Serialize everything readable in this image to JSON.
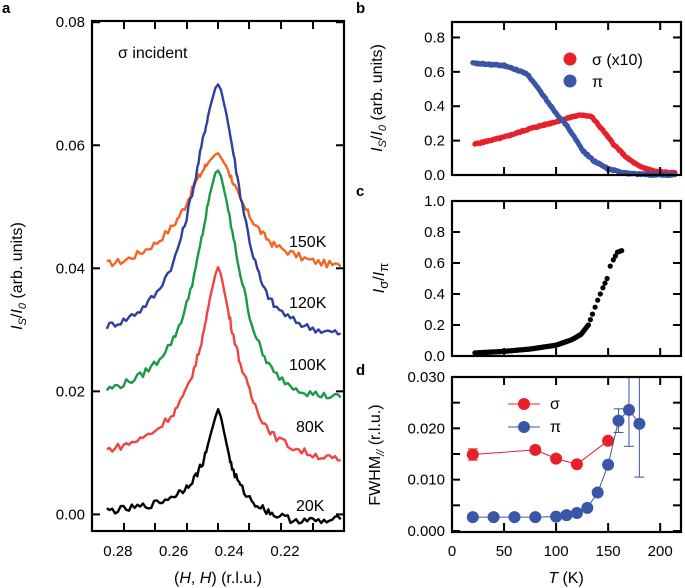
{
  "figure": {
    "panels": [
      "a",
      "b",
      "c",
      "d"
    ]
  },
  "chart_data": [
    {
      "panel": "a",
      "type": "line",
      "annotation": "σ incident",
      "xlabel": "(H, H) (r.l.u.)",
      "ylabel": "I_S/I_0 (arb. units)",
      "xlim": [
        0.2893,
        0.1988
      ],
      "ylim": [
        -0.0027,
        0.0802
      ],
      "x_tick_labels": [
        "0.28",
        "0.26",
        "0.24",
        "0.22"
      ],
      "x_tick_values": [
        0.28,
        0.26,
        0.24,
        0.22
      ],
      "y_tick_labels": [
        "0.00",
        "0.02",
        "0.04",
        "0.06",
        "0.08"
      ],
      "y_tick_values": [
        0.0,
        0.02,
        0.04,
        0.06,
        0.08
      ],
      "x": [
        0.284,
        0.278,
        0.272,
        0.266,
        0.26,
        0.256,
        0.252,
        0.249,
        0.247,
        0.245,
        0.244,
        0.243,
        0.241,
        0.239,
        0.236,
        0.232,
        0.228,
        0.224,
        0.218,
        0.212,
        0.206,
        0.2
      ],
      "series": [
        {
          "name": "150K",
          "color": "#f26522",
          "values": [
            0.0407,
            0.0412,
            0.0425,
            0.0442,
            0.047,
            0.05,
            0.054,
            0.0563,
            0.0575,
            0.0585,
            0.0587,
            0.058,
            0.0565,
            0.0545,
            0.051,
            0.048,
            0.0455,
            0.0438,
            0.0425,
            0.0414,
            0.0408,
            0.0403
          ]
        },
        {
          "name": "120K",
          "color": "#2e3f9e",
          "values": [
            0.0306,
            0.0315,
            0.0332,
            0.036,
            0.041,
            0.047,
            0.055,
            0.062,
            0.066,
            0.0693,
            0.0699,
            0.069,
            0.065,
            0.06,
            0.052,
            0.043,
            0.037,
            0.034,
            0.0318,
            0.0305,
            0.0298,
            0.0294
          ]
        },
        {
          "name": "100K",
          "color": "#1a9a48",
          "values": [
            0.0203,
            0.0212,
            0.0225,
            0.0248,
            0.0285,
            0.033,
            0.04,
            0.047,
            0.052,
            0.0555,
            0.0559,
            0.055,
            0.051,
            0.046,
            0.039,
            0.031,
            0.026,
            0.023,
            0.021,
            0.0198,
            0.0193,
            0.019
          ]
        },
        {
          "name": "80K",
          "color": "#ef4444",
          "values": [
            0.0105,
            0.0112,
            0.0122,
            0.0138,
            0.0165,
            0.0195,
            0.0245,
            0.03,
            0.035,
            0.039,
            0.0402,
            0.039,
            0.0345,
            0.03,
            0.0245,
            0.019,
            0.0152,
            0.0128,
            0.011,
            0.01,
            0.0093,
            0.0088
          ]
        },
        {
          "name": "20K",
          "color": "#000000",
          "values": [
            0.0006,
            0.0008,
            0.0012,
            0.0018,
            0.003,
            0.0042,
            0.0062,
            0.009,
            0.0125,
            0.0158,
            0.0171,
            0.0158,
            0.0115,
            0.0075,
            0.0045,
            0.0022,
            0.001,
            0.0,
            -0.0008,
            -0.001,
            -0.0012,
            -0.0008
          ]
        }
      ]
    },
    {
      "panel": "b",
      "type": "scatter",
      "ylabel": "I_S/I_0 (arb. units)",
      "xlim": [
        0,
        220
      ],
      "ylim": [
        0,
        0.89
      ],
      "y_tick_labels": [
        "0.0",
        "0.2",
        "0.4",
        "0.6",
        "0.8"
      ],
      "y_tick_values": [
        0.0,
        0.2,
        0.4,
        0.6,
        0.8
      ],
      "x_tick_values": [
        50,
        100,
        150,
        200
      ],
      "legend": "top-right",
      "series": [
        {
          "name": "σ (x10)",
          "color": "#e8202a",
          "x": [
            22,
            50,
            75,
            100,
            116,
            126,
            134,
            145,
            155,
            168,
            180,
            196,
            215
          ],
          "values": [
            0.18,
            0.22,
            0.27,
            0.31,
            0.34,
            0.35,
            0.34,
            0.26,
            0.18,
            0.1,
            0.05,
            0.02,
            0.01
          ]
        },
        {
          "name": "π",
          "color": "#3b55a8",
          "x": [
            20,
            50,
            72,
            88,
            100,
            110,
            126,
            136,
            150,
            168,
            190,
            215
          ],
          "values": [
            0.65,
            0.637,
            0.59,
            0.46,
            0.36,
            0.29,
            0.14,
            0.083,
            0.035,
            0.01,
            0.002,
            0.0
          ]
        }
      ]
    },
    {
      "panel": "c",
      "type": "scatter",
      "ylabel": "I_σ/I_π",
      "xlim": [
        0,
        220
      ],
      "ylim": [
        0,
        1.0
      ],
      "y_tick_labels": [
        "0.0",
        "0.2",
        "0.4",
        "0.6",
        "0.8",
        "1.0"
      ],
      "y_tick_values": [
        0.0,
        0.2,
        0.4,
        0.6,
        0.8,
        1.0
      ],
      "x_tick_values": [
        50,
        100,
        150,
        200
      ],
      "series": [
        {
          "name": "I_σ/I_π",
          "color": "#000000",
          "x": [
            22,
            50,
            75,
            100,
            115,
            124,
            131,
            135,
            140,
            145,
            149,
            152,
            155,
            159,
            163
          ],
          "values": [
            0.02,
            0.03,
            0.045,
            0.07,
            0.105,
            0.14,
            0.2,
            0.27,
            0.36,
            0.44,
            0.5,
            0.58,
            0.62,
            0.67,
            0.68
          ]
        }
      ]
    },
    {
      "panel": "d",
      "type": "line",
      "xlabel": "T (K)",
      "ylabel": "FWHM// (r.l.u.)",
      "xlim": [
        0,
        220
      ],
      "ylim": [
        0,
        0.03
      ],
      "x_tick_labels": [
        "0",
        "50",
        "100",
        "150",
        "200"
      ],
      "x_tick_values": [
        0,
        50,
        100,
        150,
        200
      ],
      "y_tick_labels": [
        "0.000",
        "0.010",
        "0.020",
        "0.030"
      ],
      "y_tick_values": [
        0.0,
        0.01,
        0.02,
        0.03
      ],
      "legend": "top-center",
      "series": [
        {
          "name": "σ",
          "color": "#e8202a",
          "x": [
            20,
            80,
            100,
            120,
            150
          ],
          "values": [
            0.0149,
            0.0158,
            0.0141,
            0.013,
            0.0176
          ],
          "errors": [
            0.0011,
            0,
            0,
            0,
            0
          ]
        },
        {
          "name": "π",
          "color": "#3b55a8",
          "x": [
            20,
            40,
            60,
            80,
            100,
            110,
            120,
            130,
            140,
            150,
            160,
            170,
            180
          ],
          "values": [
            0.0027,
            0.0027,
            0.0027,
            0.0027,
            0.0028,
            0.0031,
            0.0035,
            0.0045,
            0.0075,
            0.0129,
            0.0215,
            0.0236,
            0.0209
          ],
          "errors": [
            0,
            0,
            0,
            0,
            0,
            0,
            0,
            0,
            0,
            0,
            0.0023,
            0.0071,
            0.0104
          ]
        }
      ]
    }
  ]
}
